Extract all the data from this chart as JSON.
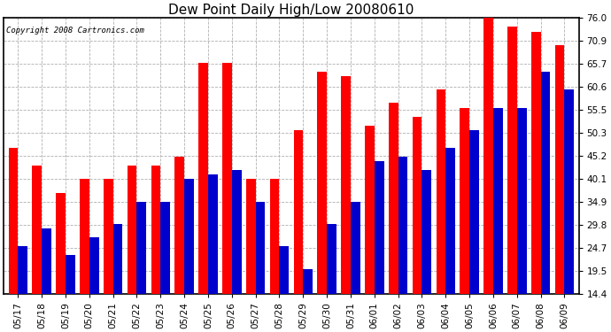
{
  "title": "Dew Point Daily High/Low 20080610",
  "copyright": "Copyright 2008 Cartronics.com",
  "dates": [
    "05/17",
    "05/18",
    "05/19",
    "05/20",
    "05/21",
    "05/22",
    "05/23",
    "05/24",
    "05/25",
    "05/26",
    "05/27",
    "05/28",
    "05/29",
    "05/30",
    "05/31",
    "06/01",
    "06/02",
    "06/03",
    "06/04",
    "06/05",
    "06/06",
    "06/07",
    "06/08",
    "06/09"
  ],
  "highs": [
    47,
    43,
    37,
    40,
    40,
    43,
    43,
    45,
    66,
    66,
    40,
    40,
    51,
    64,
    63,
    52,
    57,
    54,
    60,
    56,
    76,
    74,
    73,
    70
  ],
  "lows": [
    25,
    29,
    23,
    27,
    30,
    35,
    35,
    40,
    41,
    42,
    35,
    25,
    20,
    30,
    35,
    44,
    45,
    42,
    47,
    51,
    56,
    56,
    64,
    60
  ],
  "high_color": "#ff0000",
  "low_color": "#0000cc",
  "background_color": "#ffffff",
  "plot_background": "#ffffff",
  "grid_color": "#b0b0b0",
  "yticks": [
    14.4,
    19.5,
    24.7,
    29.8,
    34.9,
    40.1,
    45.2,
    50.3,
    55.5,
    60.6,
    65.7,
    70.9,
    76.0
  ],
  "ymin": 14.4,
  "ymax": 76.0,
  "bar_width": 0.4,
  "title_fontsize": 11,
  "tick_fontsize": 7.5,
  "copyright_fontsize": 6.5
}
